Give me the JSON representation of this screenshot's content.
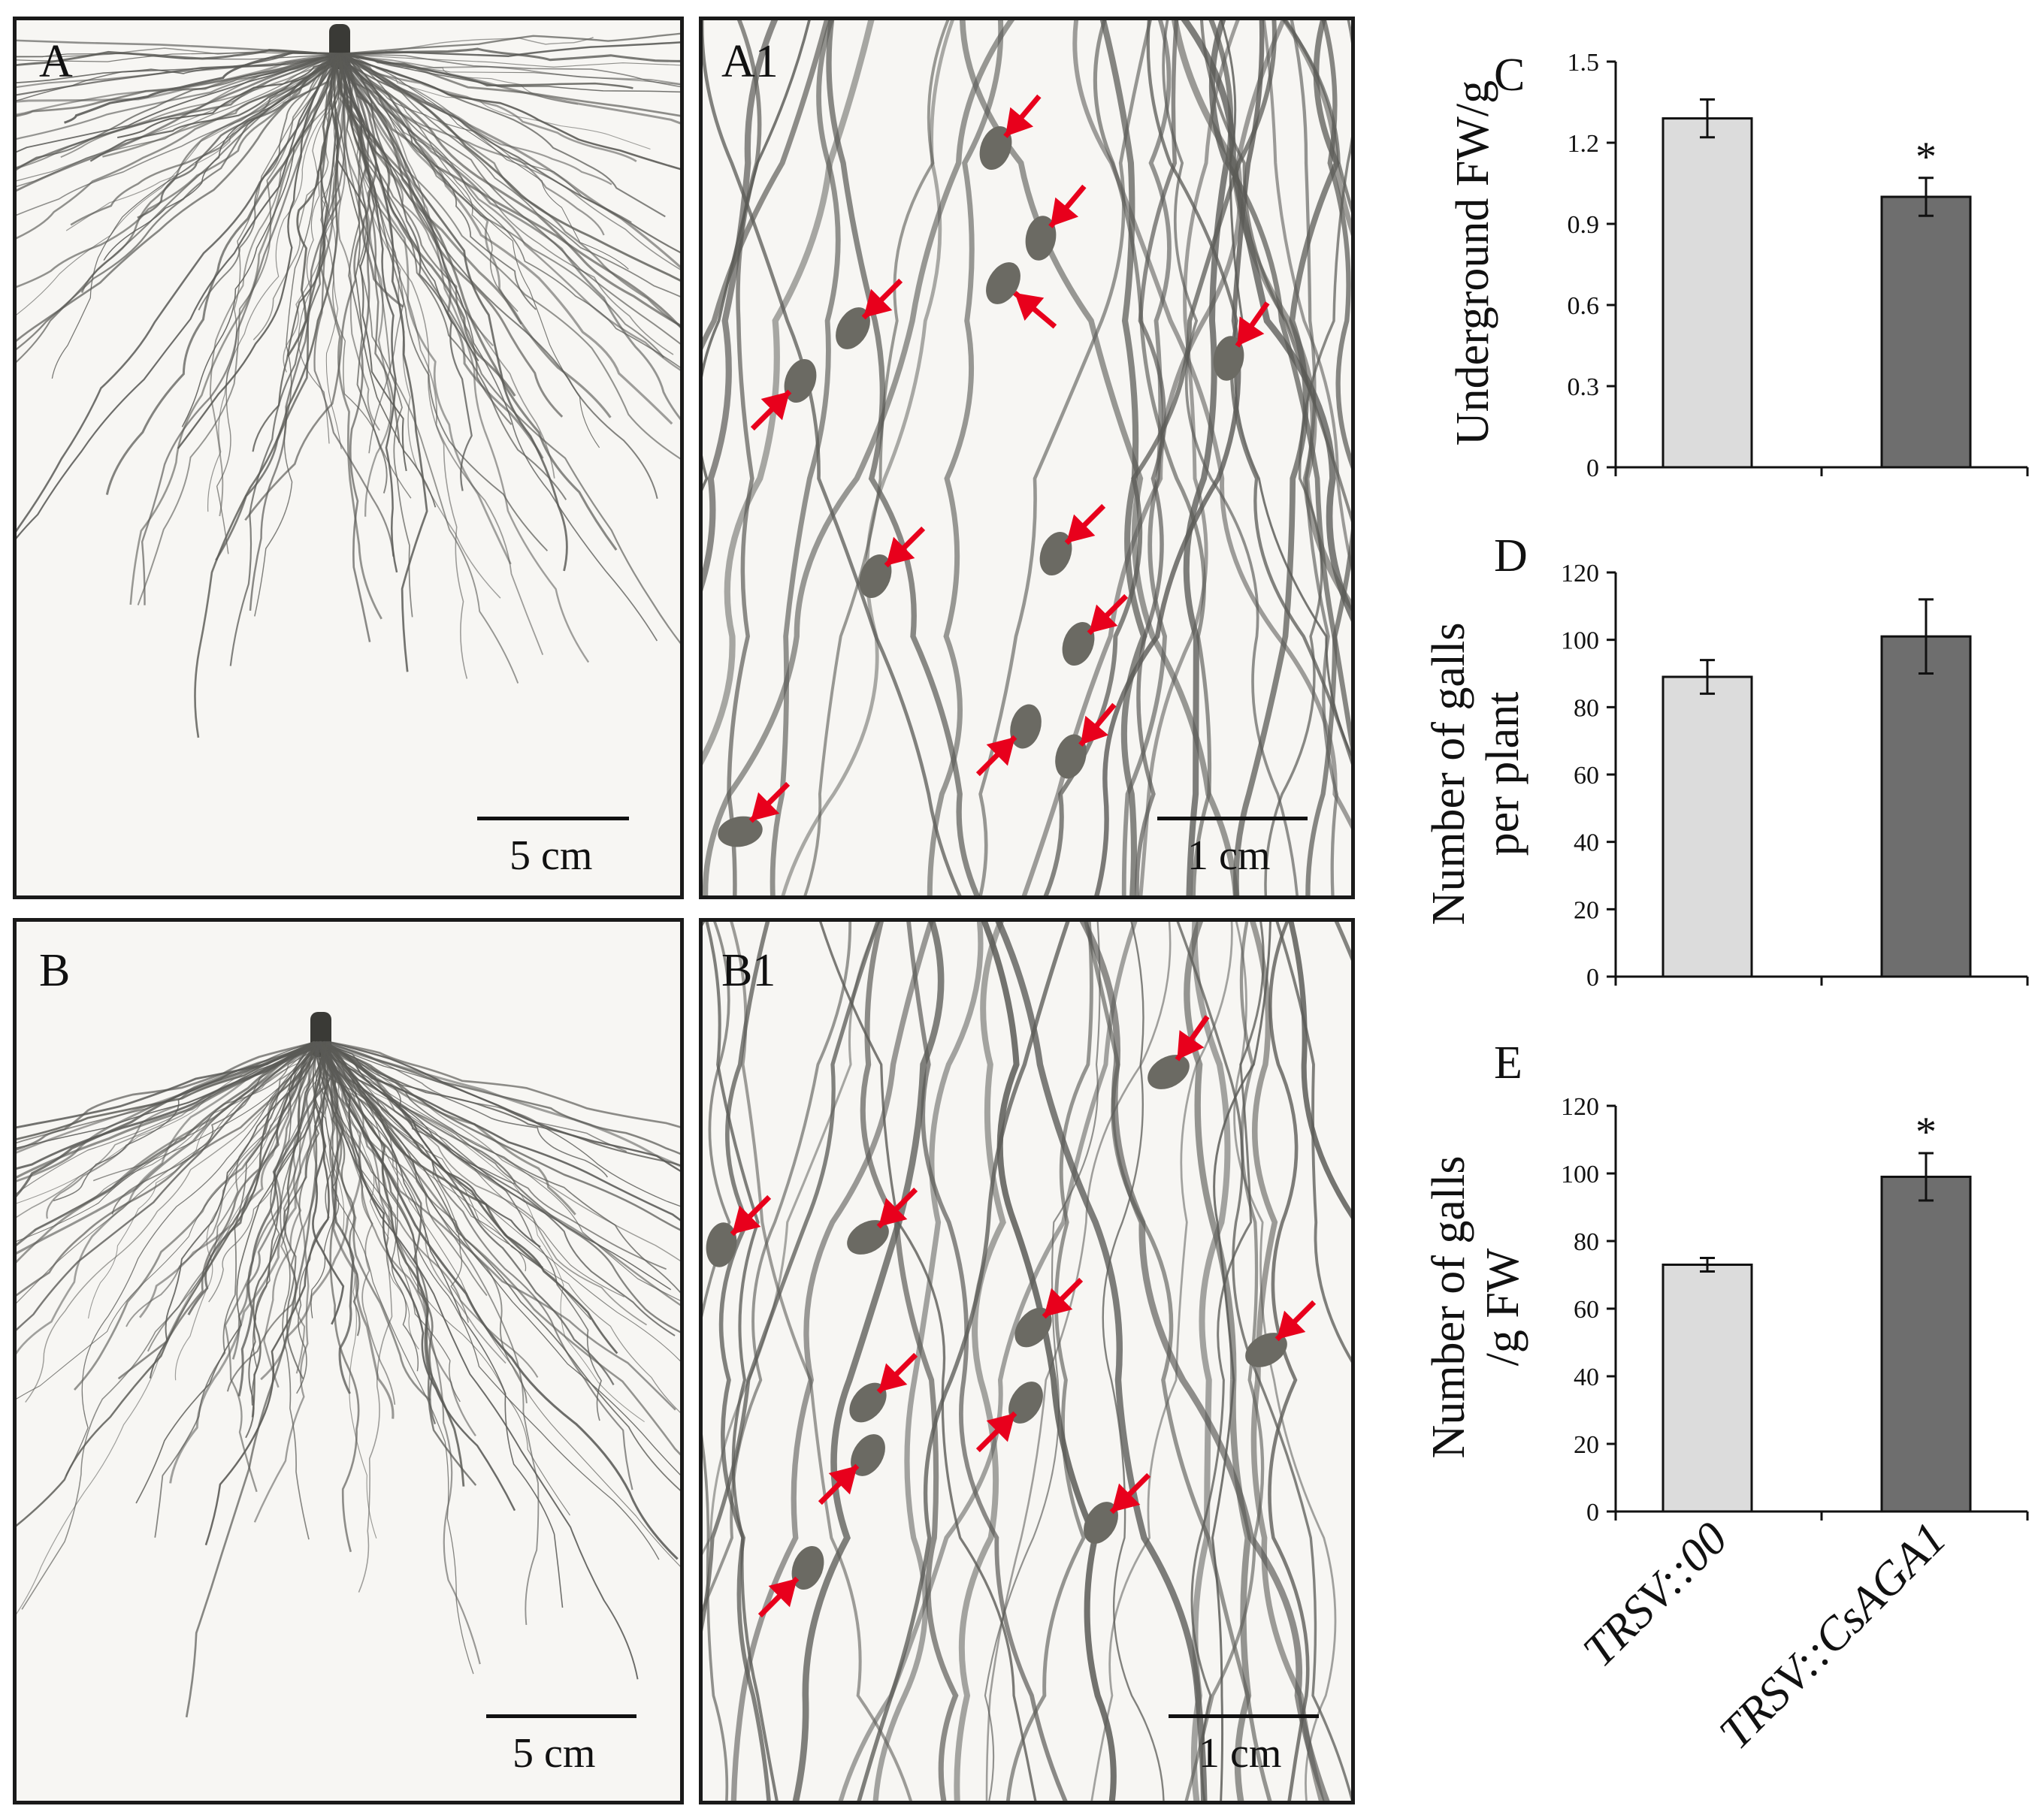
{
  "photos": [
    {
      "id": "A",
      "label": "A",
      "scale": "5 cm"
    },
    {
      "id": "A1",
      "label": "A1",
      "scale": "1 cm"
    },
    {
      "id": "B",
      "label": "B",
      "scale": "5 cm"
    },
    {
      "id": "B1",
      "label": "B1",
      "scale": "1 cm"
    }
  ],
  "colors": {
    "bar_control": "#dcdcdc",
    "bar_treatment": "#6e6e6e",
    "arrow": "#e8001c",
    "root": "#5a5a56"
  },
  "chart_data": [
    {
      "type": "bar",
      "panel": "C",
      "categories": [
        "TRSV::00",
        "TRSV::CsAGA1"
      ],
      "values": [
        1.29,
        1.0
      ],
      "errors": [
        0.07,
        0.07
      ],
      "significance": [
        "",
        "*"
      ],
      "ylabel": "Underground FW/g",
      "ylim": [
        0,
        1.5
      ],
      "yticks": [
        "0",
        "0.3",
        "0.6",
        "0.9",
        "1.2",
        "1.5"
      ],
      "ytick_values": [
        0,
        0.3,
        0.6,
        0.9,
        1.2,
        1.5
      ]
    },
    {
      "type": "bar",
      "panel": "D",
      "categories": [
        "TRSV::00",
        "TRSV::CsAGA1"
      ],
      "values": [
        89,
        101
      ],
      "errors": [
        5,
        11
      ],
      "significance": [
        "",
        ""
      ],
      "ylabel": [
        "Number of galls",
        "per plant"
      ],
      "ylim": [
        0,
        120
      ],
      "yticks": [
        "0",
        "20",
        "40",
        "60",
        "80",
        "100",
        "120"
      ],
      "ytick_values": [
        0,
        20,
        40,
        60,
        80,
        100,
        120
      ]
    },
    {
      "type": "bar",
      "panel": "E",
      "categories": [
        "TRSV::00",
        "TRSV::CsAGA1"
      ],
      "values": [
        73,
        99
      ],
      "errors": [
        2,
        7
      ],
      "significance": [
        "",
        "*"
      ],
      "ylabel": [
        "Number of galls",
        "/g FW"
      ],
      "ylim": [
        0,
        120
      ],
      "yticks": [
        "0",
        "20",
        "40",
        "60",
        "80",
        "100",
        "120"
      ],
      "ytick_values": [
        0,
        20,
        40,
        60,
        80,
        100,
        120
      ]
    }
  ]
}
